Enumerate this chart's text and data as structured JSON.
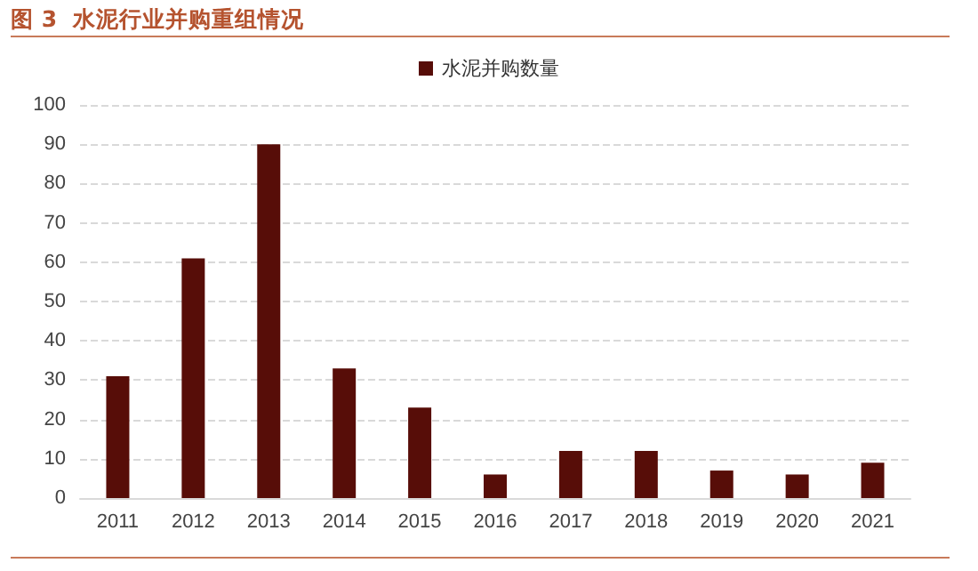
{
  "chart_data": {
    "type": "bar",
    "title": "图 3  水泥行业并购重组情况",
    "categories": [
      "2011",
      "2012",
      "2013",
      "2014",
      "2015",
      "2016",
      "2017",
      "2018",
      "2019",
      "2020",
      "2021"
    ],
    "series": [
      {
        "name": "水泥并购数量",
        "color": "#570d08",
        "values": [
          31,
          61,
          90,
          33,
          23,
          6,
          12,
          12,
          7,
          6,
          9
        ]
      }
    ],
    "ylim": [
      0,
      100
    ],
    "yticks": [
      0,
      10,
      20,
      30,
      40,
      50,
      60,
      70,
      80,
      90,
      100
    ],
    "grid": "y",
    "legend": "top"
  }
}
